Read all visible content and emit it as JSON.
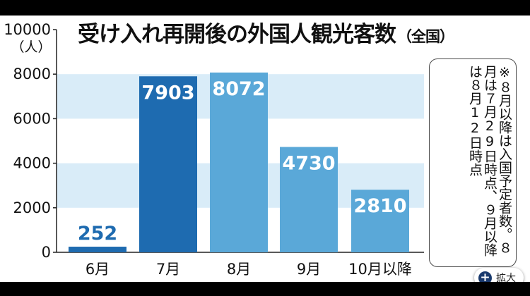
{
  "chart_data": {
    "type": "bar",
    "title": "受け入れ再開後の外国人観光客数",
    "subtitle": "（全国）",
    "ylabel": "（人）",
    "ylim": [
      0,
      10000
    ],
    "yticks": [
      "0",
      "2000",
      "4000",
      "6000",
      "8000",
      "10000"
    ],
    "categories": [
      "6月",
      "7月",
      "8月",
      "9月",
      "10月以降"
    ],
    "values": [
      252,
      7903,
      8072,
      4730,
      2810
    ],
    "data_labels": [
      "252",
      "7903",
      "8072",
      "4730",
      "2810"
    ],
    "bar_colors": [
      "#1e6bb0",
      "#1e6bb0",
      "#5aa8d8",
      "#5aa8d8",
      "#5aa8d8"
    ],
    "label_colors": [
      "#1e6bb0",
      "#ffffff",
      "#ffffff",
      "#ffffff",
      "#ffffff"
    ],
    "band_color": "#d9ecf8",
    "note": "※８月以降は入国予定者数。８月は７月29日時点、９月以降は８月12日時点"
  },
  "ui": {
    "expand_label": "拡大",
    "expand_icon": "plus-circle-icon"
  }
}
